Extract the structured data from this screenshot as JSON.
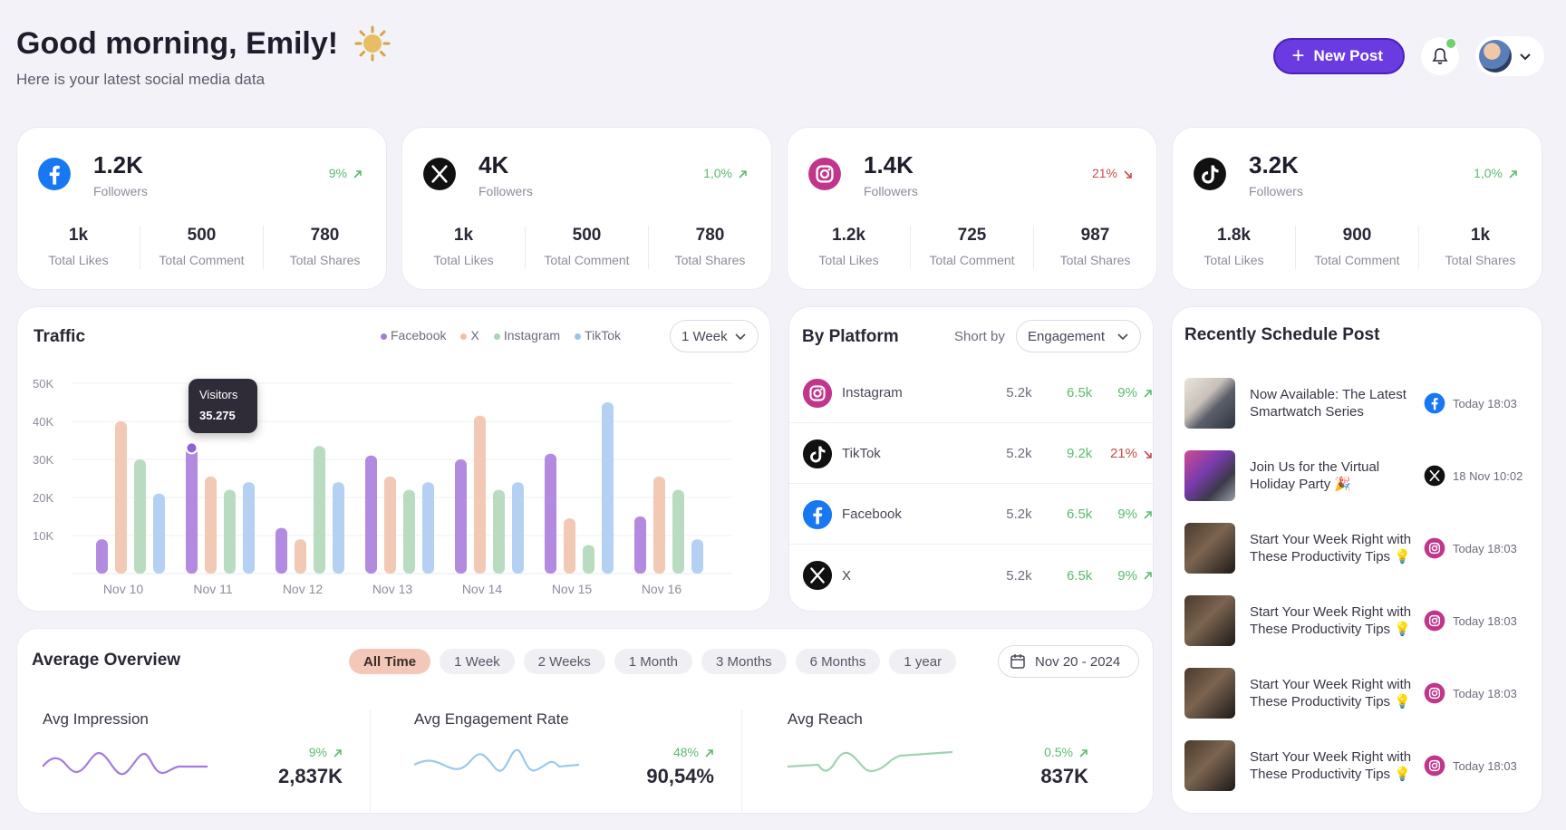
{
  "header": {
    "greeting": "Good morning, Emily!",
    "subtitle": "Here is your latest social media data",
    "new_post_label": "New Post"
  },
  "colors": {
    "accent": "#6a3be0",
    "up": "#5dba72",
    "down": "#c24e4e",
    "facebook": "#b28be0",
    "x": "#f1c9b5",
    "instagram": "#b9dcc0",
    "tiktok": "#b4d0f3"
  },
  "stats": [
    {
      "platform": "facebook",
      "icon": "facebook-icon",
      "value": "1.2K",
      "label": "Followers",
      "change": "9%",
      "trend": "up",
      "likes": "1k",
      "comments": "500",
      "shares": "780",
      "likes_label": "Total Likes",
      "comments_label": "Total Comment",
      "shares_label": "Total Shares"
    },
    {
      "platform": "x",
      "icon": "x-icon",
      "value": "4K",
      "label": "Followers",
      "change": "1,0%",
      "trend": "up",
      "likes": "1k",
      "comments": "500",
      "shares": "780",
      "likes_label": "Total Likes",
      "comments_label": "Total Comment",
      "shares_label": "Total Shares"
    },
    {
      "platform": "instagram",
      "icon": "instagram-icon",
      "value": "1.4K",
      "label": "Followers",
      "change": "21%",
      "trend": "down",
      "likes": "1.2k",
      "comments": "725",
      "shares": "987",
      "likes_label": "Total Likes",
      "comments_label": "Total Comment",
      "shares_label": "Total Shares"
    },
    {
      "platform": "tiktok",
      "icon": "tiktok-icon",
      "value": "3.2K",
      "label": "Followers",
      "change": "1,0%",
      "trend": "up",
      "likes": "1.8k",
      "comments": "900",
      "shares": "1k",
      "likes_label": "Total Likes",
      "comments_label": "Total Comment",
      "shares_label": "Total Shares"
    }
  ],
  "traffic": {
    "title": "Traffic",
    "range": "1 Week",
    "legend": [
      "Facebook",
      "X",
      "Instagram",
      "TikTok"
    ],
    "tooltip_label": "Visitors",
    "tooltip_value": "35.275"
  },
  "chart_data": {
    "type": "bar",
    "categories": [
      "Nov 10",
      "Nov 11",
      "Nov 12",
      "Nov 13",
      "Nov 14",
      "Nov 15",
      "Nov 16"
    ],
    "y_ticks": [
      "50K",
      "40K",
      "30K",
      "20K",
      "10K"
    ],
    "ylim": [
      0,
      50000
    ],
    "series": [
      {
        "name": "Facebook",
        "values": [
          9000,
          33000,
          12000,
          31000,
          30000,
          31500,
          15000
        ]
      },
      {
        "name": "X",
        "values": [
          40000,
          25500,
          9000,
          25500,
          41500,
          14500,
          25500
        ]
      },
      {
        "name": "Instagram",
        "values": [
          30000,
          22000,
          33500,
          22000,
          22000,
          7500,
          22000
        ]
      },
      {
        "name": "TikTok",
        "values": [
          21000,
          24000,
          24000,
          24000,
          24000,
          45000,
          9000
        ]
      }
    ]
  },
  "by_platform": {
    "title": "By Platform",
    "sort_label": "Short by",
    "sort_value": "Engagement",
    "rows": [
      {
        "name": "Instagram",
        "icon": "instagram-icon",
        "v1": "5.2k",
        "v2": "6.5k",
        "change": "9%",
        "trend": "up"
      },
      {
        "name": "TikTok",
        "icon": "tiktok-icon",
        "v1": "5.2k",
        "v2": "9.2k",
        "change": "21%",
        "trend": "down"
      },
      {
        "name": "Facebook",
        "icon": "facebook-icon",
        "v1": "5.2k",
        "v2": "6.5k",
        "change": "9%",
        "trend": "up"
      },
      {
        "name": "X",
        "icon": "x-icon",
        "v1": "5.2k",
        "v2": "6.5k",
        "change": "9%",
        "trend": "up"
      }
    ]
  },
  "recent_posts": {
    "title": "Recently Schedule Post",
    "items": [
      {
        "title": "Now Available: The Latest Smartwatch Series",
        "platform": "facebook-icon",
        "time": "Today 18:03"
      },
      {
        "title": "Join Us for the Virtual Holiday Party 🎉",
        "platform": "x-icon",
        "time": "18 Nov 10:02"
      },
      {
        "title": "Start Your Week Right with These Productivity Tips 💡",
        "platform": "instagram-icon",
        "time": "Today 18:03"
      },
      {
        "title": "Start Your Week Right with These Productivity Tips 💡",
        "platform": "instagram-icon",
        "time": "Today 18:03"
      },
      {
        "title": "Start Your Week Right with These Productivity Tips 💡",
        "platform": "instagram-icon",
        "time": "Today 18:03"
      },
      {
        "title": "Start Your Week Right with These Productivity Tips 💡",
        "platform": "instagram-icon",
        "time": "Today 18:03"
      }
    ]
  },
  "average": {
    "title": "Average Overview",
    "filters": [
      "All Time",
      "1 Week",
      "2 Weeks",
      "1 Month",
      "3 Months",
      "6 Months",
      "1 year"
    ],
    "active_filter": "All Time",
    "date_range": "Nov 20 - 2024",
    "metrics": [
      {
        "title": "Avg Impression",
        "change": "9%",
        "value": "2,837K",
        "color": "#a47bdc"
      },
      {
        "title": "Avg Engagement Rate",
        "change": "48%",
        "value": "90,54%",
        "color": "#9cc8ea"
      },
      {
        "title": "Avg Reach",
        "change": "0.5%",
        "value": "837K",
        "color": "#9fd3b2"
      }
    ]
  }
}
